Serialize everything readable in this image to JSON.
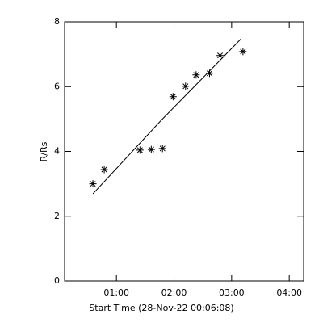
{
  "chart_data": {
    "type": "scatter",
    "xlabel": "Start Time (28-Nov-22 00:06:08)",
    "ylabel": "R/Rs",
    "xlim": [
      6,
      255
    ],
    "ylim": [
      0,
      8
    ],
    "xticks": [
      {
        "value": 60,
        "label": "01:00"
      },
      {
        "value": 120,
        "label": "02:00"
      },
      {
        "value": 180,
        "label": "03:00"
      },
      {
        "value": 240,
        "label": "04:00"
      }
    ],
    "yticks": [
      0,
      2,
      4,
      6,
      8
    ],
    "series": [
      {
        "style": "asterisk",
        "color": "#000000",
        "x": [
          35.5,
          47.3,
          84.5,
          96.3,
          108,
          119,
          132,
          143,
          157,
          168,
          191.8
        ],
        "values": [
          3.0,
          3.44,
          4.04,
          4.06,
          4.09,
          5.69,
          6.01,
          6.36,
          6.41,
          6.96,
          7.08
        ]
      },
      {
        "style": "line",
        "color": "#000000",
        "x": [
          35.5,
          106,
          190
        ],
        "values": [
          2.69,
          4.94,
          7.48
        ]
      }
    ]
  }
}
